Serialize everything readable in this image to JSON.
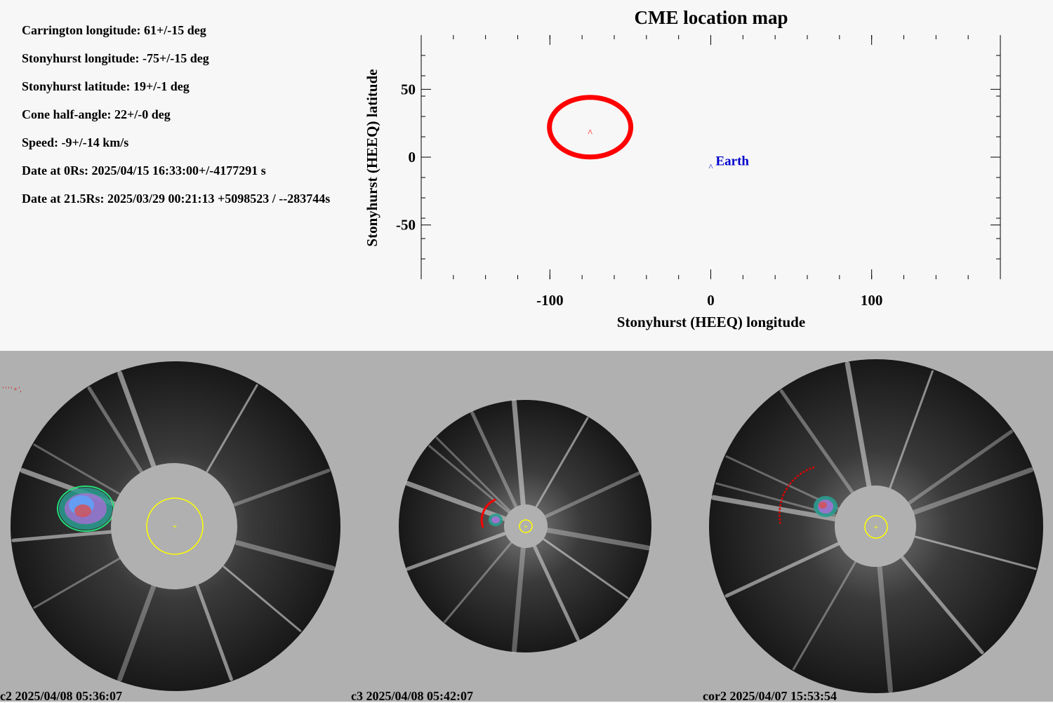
{
  "parameters": [
    "Carrington longitude: 61+/-15 deg",
    "Stonyhurst longitude: -75+/-15 deg",
    "Stonyhurst latitude: 19+/-1 deg",
    "Cone half-angle: 22+/-0 deg",
    "Speed: -9+/-14 km/s",
    "Date at 0Rs: 2025/04/15 16:33:00+/-4177291 s",
    "Date at 21.5Rs: 2025/03/29 00:21:13 +5098523 / --283744s"
  ],
  "chart_data": {
    "type": "scatter",
    "title": "CME location map",
    "xlabel": "Stonyhurst (HEEQ) longitude",
    "ylabel": "Stonyhurst (HEEQ) latitude",
    "xlim": [
      -180,
      180
    ],
    "ylim": [
      -90,
      90
    ],
    "xticks": [
      -100,
      0,
      100
    ],
    "yticks": [
      50,
      0,
      -50
    ],
    "cme": {
      "marker": "^",
      "lon": -75,
      "lat": 19,
      "cone_half_angle": 22,
      "color": "#ff0000"
    },
    "earth": {
      "marker": "^",
      "label": "Earth",
      "lon": 0,
      "lat": -6,
      "color": "#0000cc"
    }
  },
  "images": [
    {
      "caption": "c2 2025/04/08 05:36:07",
      "instrument": "c2"
    },
    {
      "caption": "c3 2025/04/08 05:42:07",
      "instrument": "c3"
    },
    {
      "caption": "cor2 2025/04/07 15:53:54",
      "instrument": "cor2"
    }
  ],
  "colors": {
    "cme_outline": "#ff0000",
    "earth": "#0000cc",
    "sun_limb": "#ffff00",
    "occulter": "#b0b0b0",
    "panel_background": "#b0b0b0"
  }
}
